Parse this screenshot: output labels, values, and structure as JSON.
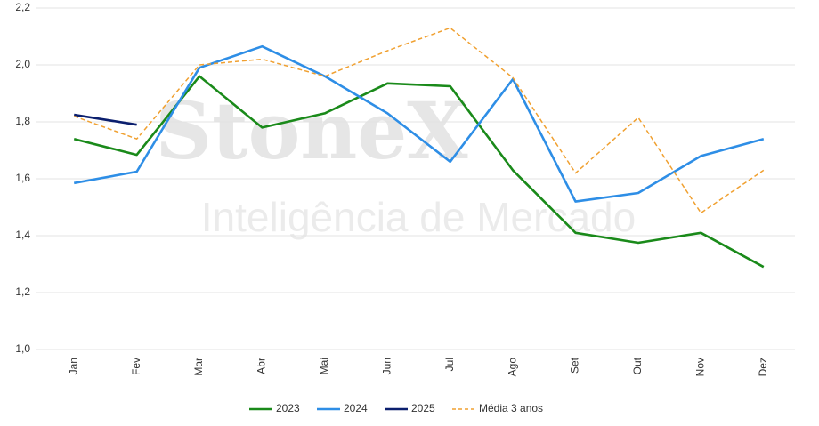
{
  "chart_data": {
    "type": "line",
    "watermark": [
      "StoneX",
      "Inteligência de Mercado"
    ],
    "categories": [
      "Jan",
      "Fev",
      "Mar",
      "Abr",
      "Mai",
      "Jun",
      "Jul",
      "Ago",
      "Set",
      "Out",
      "Nov",
      "Dez"
    ],
    "series": [
      {
        "name": "2023",
        "color": "#1a8a1a",
        "style": "solid",
        "values": [
          1.74,
          1.684,
          1.96,
          1.78,
          1.83,
          1.935,
          1.925,
          1.63,
          1.41,
          1.375,
          1.41,
          1.29
        ]
      },
      {
        "name": "2024",
        "color": "#2e8ee6",
        "style": "solid",
        "values": [
          1.585,
          1.625,
          1.99,
          2.065,
          1.96,
          1.83,
          1.66,
          1.95,
          1.52,
          1.55,
          1.68,
          1.74
        ]
      },
      {
        "name": "2025",
        "color": "#0b1f6e",
        "style": "solid",
        "values": [
          1.825,
          1.79,
          null,
          null,
          null,
          null,
          null,
          null,
          null,
          null,
          null,
          null
        ]
      },
      {
        "name": "Média 3 anos",
        "color": "#f0a030",
        "style": "dashed",
        "values": [
          1.82,
          1.74,
          2.0,
          2.02,
          1.96,
          2.05,
          2.13,
          1.955,
          1.62,
          1.815,
          1.48,
          1.63
        ]
      }
    ],
    "ylim": [
      1.0,
      2.2
    ],
    "yticks": [
      {
        "value": 1.0,
        "label": "1,0"
      },
      {
        "value": 1.2,
        "label": "1,2"
      },
      {
        "value": 1.4,
        "label": "1,4"
      },
      {
        "value": 1.6,
        "label": "1,6"
      },
      {
        "value": 1.8,
        "label": "1,8"
      },
      {
        "value": 2.0,
        "label": "2,0"
      },
      {
        "value": 2.2,
        "label": "2,2"
      }
    ],
    "grid": true,
    "legend": "bottom"
  }
}
